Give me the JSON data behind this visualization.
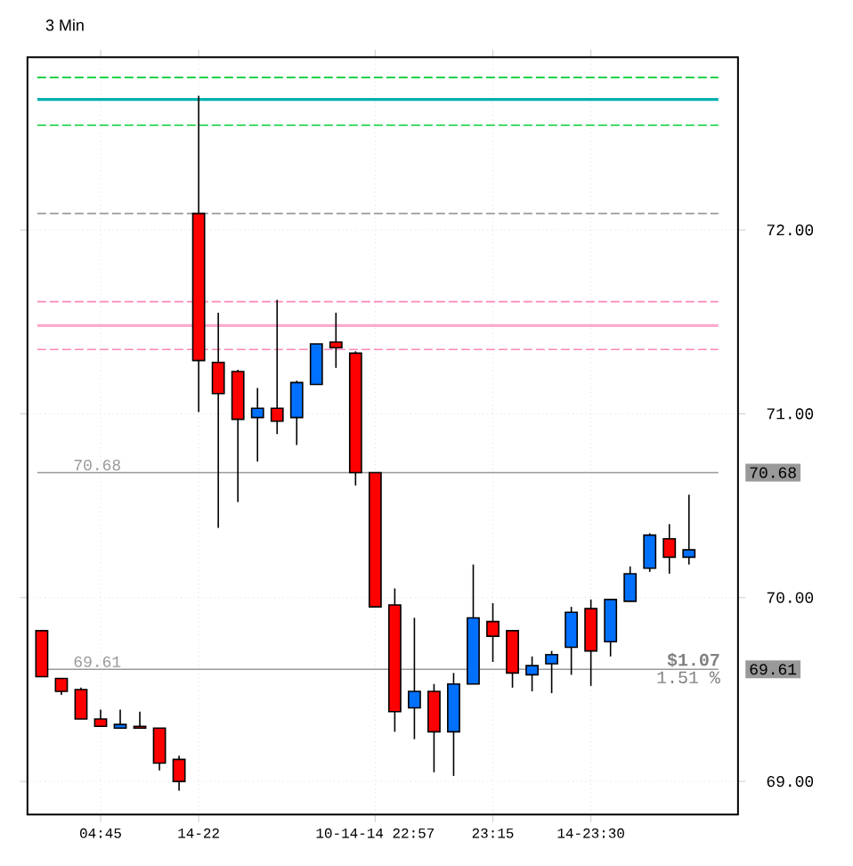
{
  "chart_data": {
    "type": "candlestick",
    "title": "3 Min",
    "categories": [
      null,
      null,
      null,
      "04:45",
      null,
      null,
      null,
      null,
      "14-22",
      null,
      null,
      null,
      null,
      null,
      null,
      null,
      null,
      "10-14-14 22:57",
      null,
      null,
      null,
      null,
      null,
      "23:15",
      null,
      null,
      null,
      null,
      "14-23:30",
      null,
      null,
      null,
      null,
      null
    ],
    "ohlc": [
      [
        69.82,
        69.82,
        69.57,
        69.57
      ],
      [
        69.56,
        69.56,
        69.47,
        69.49
      ],
      [
        69.5,
        69.51,
        69.34,
        69.34
      ],
      [
        69.34,
        69.39,
        69.3,
        69.3
      ],
      [
        69.29,
        69.39,
        69.29,
        69.31
      ],
      [
        69.3,
        69.38,
        69.29,
        69.29
      ],
      [
        69.29,
        69.29,
        69.06,
        69.1
      ],
      [
        69.12,
        69.14,
        68.95,
        69.0
      ],
      [
        72.09,
        72.73,
        71.01,
        71.29
      ],
      [
        71.28,
        71.55,
        70.38,
        71.11
      ],
      [
        71.23,
        71.24,
        70.52,
        70.97
      ],
      [
        70.98,
        71.14,
        70.74,
        71.03
      ],
      [
        71.03,
        71.62,
        70.89,
        70.96
      ],
      [
        70.98,
        71.18,
        70.83,
        71.17
      ],
      [
        71.16,
        71.38,
        71.16,
        71.38
      ],
      [
        71.39,
        71.55,
        71.25,
        71.36
      ],
      [
        71.33,
        71.34,
        70.61,
        70.68
      ],
      [
        70.68,
        70.68,
        69.95,
        69.95
      ],
      [
        69.96,
        70.05,
        69.27,
        69.38
      ],
      [
        69.4,
        69.89,
        69.23,
        69.49
      ],
      [
        69.49,
        69.53,
        69.05,
        69.27
      ],
      [
        69.27,
        69.59,
        69.03,
        69.53
      ],
      [
        69.53,
        70.18,
        69.53,
        69.89
      ],
      [
        69.87,
        69.97,
        69.65,
        69.79
      ],
      [
        69.82,
        69.82,
        69.51,
        69.59
      ],
      [
        69.58,
        69.68,
        69.49,
        69.63
      ],
      [
        69.64,
        69.71,
        69.48,
        69.69
      ],
      [
        69.73,
        69.95,
        69.58,
        69.92
      ],
      [
        69.94,
        69.99,
        69.52,
        69.71
      ],
      [
        69.76,
        69.99,
        69.68,
        69.99
      ],
      [
        69.98,
        70.17,
        69.98,
        70.13
      ],
      [
        70.16,
        70.35,
        70.14,
        70.34
      ],
      [
        70.32,
        70.4,
        70.13,
        70.22
      ],
      [
        70.22,
        70.56,
        70.18,
        70.26
      ]
    ],
    "colors": [
      "#ff0000",
      "#ff0000",
      "#ff0000",
      "#ff0000",
      "#0070ff",
      "#ff0000",
      "#ff0000",
      "#ff0000",
      "#ff0000",
      "#ff0000",
      "#ff0000",
      "#0070ff",
      "#ff0000",
      "#0070ff",
      "#0070ff",
      "#ff0000",
      "#ff0000",
      "#ff0000",
      "#ff0000",
      "#0070ff",
      "#ff0000",
      "#0070ff",
      "#0070ff",
      "#ff0000",
      "#ff0000",
      "#0070ff",
      "#0070ff",
      "#0070ff",
      "#ff0000",
      "#0070ff",
      "#0070ff",
      "#0070ff",
      "#ff0000",
      "#0070ff"
    ],
    "ylim": [
      68.82,
      72.94
    ],
    "yticks": [
      {
        "value": 69,
        "label": "69.00"
      },
      {
        "value": 70,
        "label": "70.00"
      },
      {
        "value": 71,
        "label": "71.00"
      },
      {
        "value": 72,
        "label": "72.00"
      }
    ],
    "grid": true,
    "ref_lines": [
      {
        "axis": "y",
        "value": 72.83,
        "color": "#00cc33",
        "line_style": "dashed"
      },
      {
        "axis": "y",
        "value": 72.71,
        "color": "#00b0b0",
        "line_style": "solid"
      },
      {
        "axis": "y",
        "value": 72.57,
        "color": "#00cc33",
        "line_style": "dashed"
      },
      {
        "axis": "y",
        "value": 72.09,
        "color": "#999999",
        "line_style": "dashed"
      },
      {
        "axis": "y",
        "value": 71.61,
        "color": "#ff88bb",
        "line_style": "dashed"
      },
      {
        "axis": "y",
        "value": 71.48,
        "color": "#ffaad0",
        "line_style": "solid"
      },
      {
        "axis": "y",
        "value": 71.35,
        "color": "#ff88bb",
        "line_style": "dashed"
      },
      {
        "axis": "y",
        "value": 70.68,
        "label": "70.68",
        "color": "#999999",
        "line_style": "solid"
      },
      {
        "axis": "y",
        "value": 69.61,
        "label": "69.61",
        "color": "#999999",
        "line_style": "solid"
      }
    ],
    "annotations": [
      "$1.07",
      "1.51 %"
    ]
  }
}
